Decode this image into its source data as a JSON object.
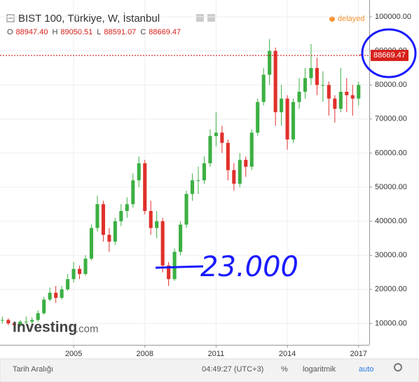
{
  "chart_data": {
    "type": "candlestick",
    "title": "BIST 100, Türkiye, W, İstanbul",
    "status": "delayed",
    "ohlc_keys": [
      "O",
      "H",
      "L",
      "C"
    ],
    "ohlc_labels": [
      "88947.40",
      "89050.51",
      "88591.07",
      "88669.47"
    ],
    "last_price_label": "88669.47",
    "watermark": [
      "Investing",
      ".com"
    ],
    "annotation": "23.000",
    "toolbar": [
      "Tarih Aralığı",
      "04:49:27 (UTC+3)",
      "%",
      "logaritmik",
      "auto"
    ],
    "up_color": "#3cb043",
    "down_color": "#e0302b",
    "x": [
      2002,
      2002.25,
      2002.5,
      2002.75,
      2003,
      2003.25,
      2003.5,
      2003.75,
      2004,
      2004.25,
      2004.5,
      2004.75,
      2005,
      2005.25,
      2005.5,
      2005.75,
      2006,
      2006.25,
      2006.5,
      2006.75,
      2007,
      2007.25,
      2007.5,
      2007.75,
      2008,
      2008.25,
      2008.5,
      2008.75,
      2009,
      2009.25,
      2009.5,
      2009.75,
      2010,
      2010.25,
      2010.5,
      2010.75,
      2011,
      2011.25,
      2011.5,
      2011.75,
      2012,
      2012.25,
      2012.5,
      2012.75,
      2013,
      2013.25,
      2013.5,
      2013.75,
      2014,
      2014.25,
      2014.5,
      2014.75,
      2015,
      2015.25,
      2015.5,
      2015.75,
      2016,
      2016.25,
      2016.5,
      2016.75,
      2017,
      2017.12
    ],
    "open": [
      10800,
      11000,
      10000,
      9500,
      10500,
      10500,
      11000,
      13000,
      17000,
      19000,
      17500,
      20000,
      23000,
      26000,
      24500,
      29000,
      38000,
      45000,
      36000,
      34000,
      40000,
      43000,
      45000,
      52000,
      57000,
      43000,
      38000,
      40000,
      27000,
      23000,
      31000,
      39000,
      48000,
      52000,
      52000,
      57000,
      65000,
      66000,
      63000,
      55000,
      51000,
      58000,
      56000,
      66000,
      75000,
      83000,
      90000,
      72000,
      76000,
      64000,
      75000,
      78000,
      82000,
      85000,
      80000,
      80000,
      76000,
      73000,
      78000,
      77000,
      76000,
      88947.4
    ],
    "high": [
      12000,
      11500,
      10500,
      11000,
      12000,
      11800,
      13800,
      17800,
      20500,
      21000,
      21000,
      24500,
      28000,
      27000,
      30000,
      39000,
      47500,
      46000,
      38000,
      41000,
      45000,
      47000,
      54000,
      59000,
      58000,
      46000,
      43000,
      41000,
      28000,
      32000,
      40000,
      49000,
      54000,
      56000,
      59000,
      67000,
      72000,
      68000,
      64000,
      57000,
      60000,
      59000,
      67000,
      76000,
      85000,
      93500,
      91000,
      80000,
      77000,
      76000,
      82000,
      85000,
      92000,
      88000,
      84000,
      81000,
      77000,
      85000,
      82000,
      80000,
      81000,
      89050.51
    ],
    "low": [
      10000,
      9500,
      8800,
      9000,
      9800,
      9500,
      10500,
      12500,
      16500,
      16000,
      17000,
      19500,
      22000,
      23000,
      24000,
      28500,
      37000,
      34000,
      31000,
      33000,
      38500,
      41000,
      44000,
      50000,
      42000,
      36000,
      35000,
      25000,
      21000,
      22500,
      30000,
      38000,
      46000,
      48000,
      51000,
      56000,
      62000,
      60000,
      52000,
      49000,
      50000,
      53000,
      55000,
      65000,
      74000,
      80000,
      68000,
      68000,
      61000,
      63000,
      73000,
      76000,
      80000,
      77000,
      75000,
      71000,
      69000,
      72000,
      72000,
      71000,
      74000,
      88591.07
    ],
    "close": [
      11000,
      10000,
      9500,
      10500,
      10500,
      11000,
      13000,
      17000,
      19000,
      17500,
      20000,
      23000,
      26000,
      24500,
      29000,
      38000,
      45000,
      36000,
      34000,
      40000,
      43000,
      45000,
      52000,
      57000,
      43000,
      38000,
      40000,
      27000,
      23000,
      31000,
      39000,
      48000,
      52000,
      52000,
      57000,
      65000,
      66000,
      63000,
      55000,
      51000,
      58000,
      56000,
      66000,
      75000,
      83000,
      90000,
      72000,
      76000,
      64000,
      75000,
      78000,
      82000,
      85000,
      80000,
      80000,
      76000,
      73000,
      78000,
      77000,
      76000,
      80000,
      88669.47
    ],
    "xlim": [
      2001.9,
      2017.45
    ],
    "xticks": [
      2005,
      2008,
      2011,
      2014,
      2017
    ],
    "ylim": [
      3700,
      104940
    ],
    "yticks": [
      {
        "value": 10000,
        "label": "10000.00"
      },
      {
        "value": 20000,
        "label": "20000.00"
      },
      {
        "value": 30000,
        "label": "30000.00"
      },
      {
        "value": 40000,
        "label": "40000.00"
      },
      {
        "value": 50000,
        "label": "50000.00"
      },
      {
        "value": 60000,
        "label": "60000.00"
      },
      {
        "value": 70000,
        "label": "70000.00"
      },
      {
        "value": 80000,
        "label": "80000.00"
      },
      {
        "value": 90000,
        "label": "90000.00"
      },
      {
        "value": 100000,
        "label": "100000.00"
      }
    ]
  }
}
